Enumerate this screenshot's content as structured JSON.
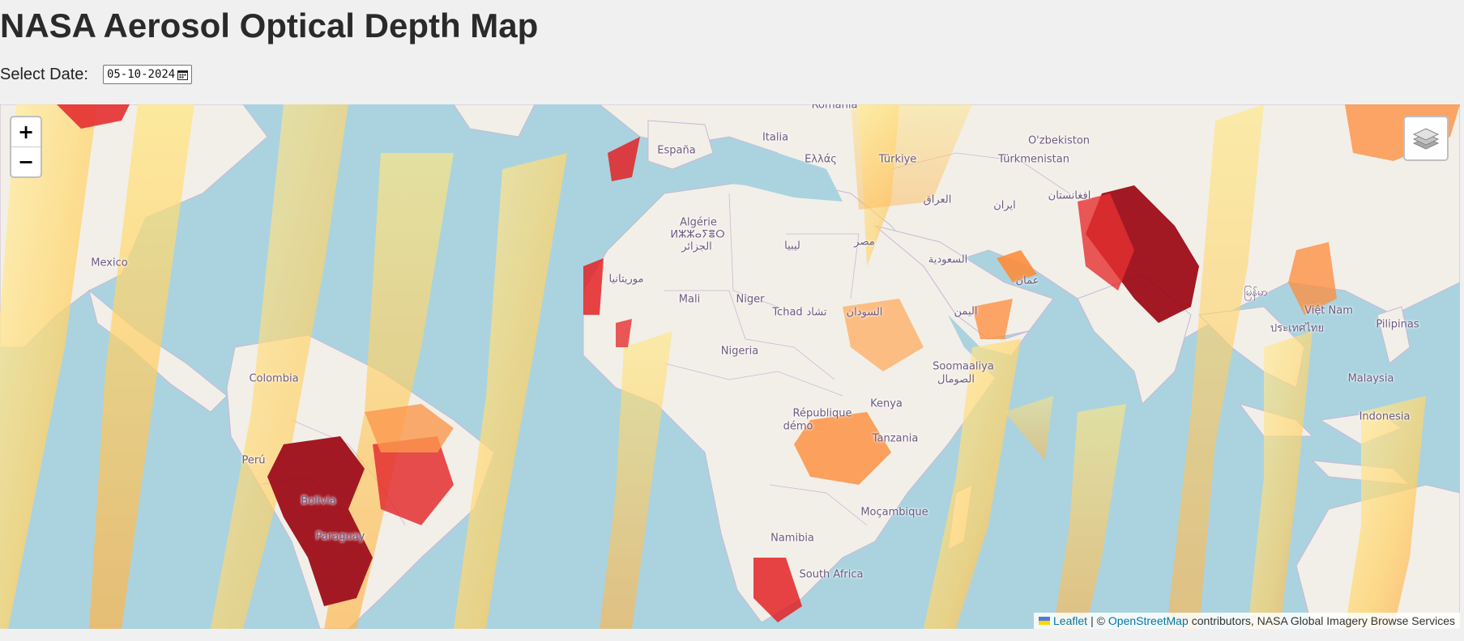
{
  "page": {
    "title": "NASA Aerosol Optical Depth Map",
    "date_label": "Select Date:",
    "date_value": "05-10-2024"
  },
  "map": {
    "zoom_in": "+",
    "zoom_out": "−",
    "layers_icon": "layers-icon",
    "colors": {
      "ocean": "#aad3df",
      "land": "#f2efe9",
      "aerosol_low": "#ffe680",
      "aerosol_mid": "#fd8d3c",
      "aerosol_high": "#e31a1c",
      "aerosol_very_high": "#99000d"
    },
    "place_labels": [
      "Romania",
      "Italia",
      "España",
      "Ελλάς",
      "Türkiye",
      "O'zbekiston",
      "Türkmenistan",
      "افغانستان",
      "العراق",
      "ایران",
      "Algérie",
      "ⵍⵣⵣⴰⵢⴻⵔ",
      "الجزائر",
      "ليبيا",
      "مصر",
      "السعودية",
      "موريتانيا",
      "Mali",
      "Niger",
      "Tchad",
      "تشاد",
      "السودان",
      "اليمن",
      "عمان",
      "Nigeria",
      "Soomaaliya",
      "الصومال",
      "Kenya",
      "République",
      "démo",
      "Tanzania",
      "Moçambique",
      "Namibia",
      "South Africa",
      "Colombia",
      "Perú",
      "Bolivia",
      "Paraguay",
      "Mexico",
      "Việt Nam",
      "ประเทศไทย",
      "Pilipinas",
      "Malaysia",
      "Indonesia",
      "မြန်မာ"
    ],
    "attribution": {
      "leaflet": "Leaflet",
      "separator": "| ©",
      "osm": "OpenStreetMap",
      "rest": "contributors, NASA Global Imagery Browse Services"
    }
  }
}
